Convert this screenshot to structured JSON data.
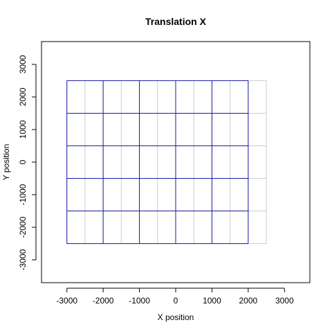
{
  "chart_data": {
    "type": "line",
    "title": "Translation X",
    "xlabel": "X position",
    "ylabel": "Y position",
    "xlim": [
      -3700,
      3700
    ],
    "ylim": [
      -3700,
      3700
    ],
    "x_ticks": [
      -3000,
      -2000,
      -1000,
      0,
      1000,
      2000,
      3000
    ],
    "y_ticks": [
      -3000,
      -2000,
      -1000,
      0,
      1000,
      2000,
      3000
    ],
    "x_tick_labels": [
      "-3000",
      "-2000",
      "-1000",
      "0",
      "1000",
      "2000",
      "3000"
    ],
    "y_tick_labels": [
      "-3000",
      "-2000",
      "-1000",
      "0",
      "1000",
      "2000",
      "3000"
    ],
    "colors": {
      "translated_grid": "#1a1aa6",
      "reference_grid": "#cccccc"
    },
    "reference_grid": {
      "x_min": -3000,
      "x_max": 2500,
      "x_step": 500,
      "y_min": -2500,
      "y_max": 2500,
      "y_step": 1000
    },
    "translated_grid": {
      "x_min": -3000,
      "x_max": 2000,
      "x_step": 1000,
      "y_min": -2500,
      "y_max": 2500,
      "y_step": 1000
    }
  }
}
